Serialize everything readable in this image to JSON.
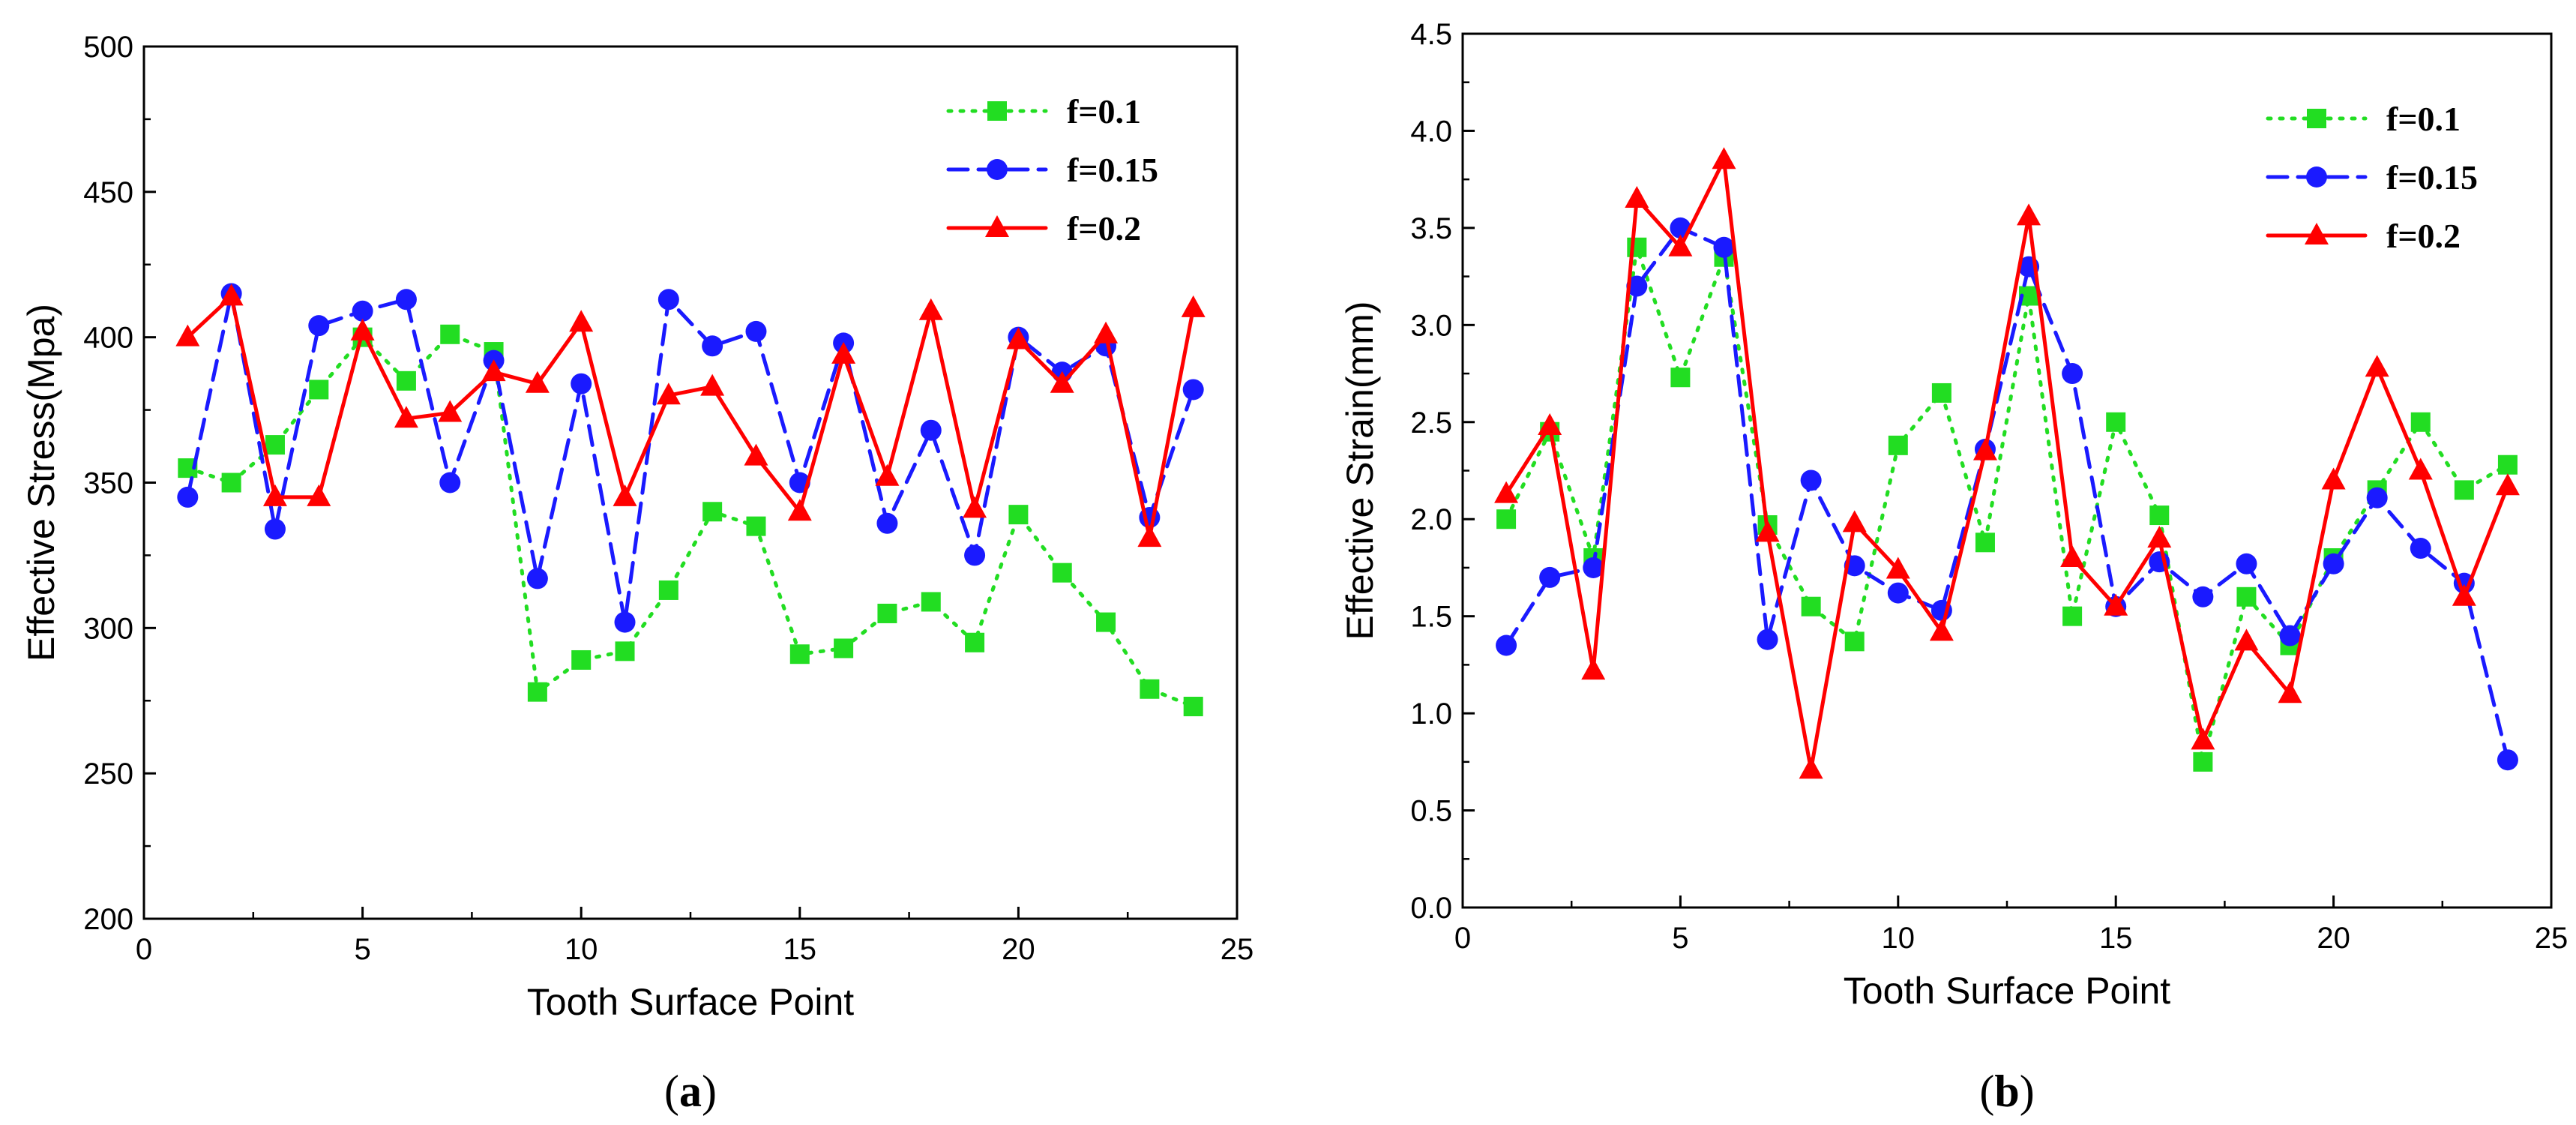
{
  "chart_data": [
    {
      "type": "line",
      "panel_label": "a",
      "title": "",
      "xlabel": "Tooth Surface Point",
      "ylabel": "Effective Stress(Mpa)",
      "xlim": [
        0,
        25
      ],
      "ylim": [
        200,
        500
      ],
      "xticks": [
        "0",
        "5",
        "10",
        "15",
        "20",
        "25"
      ],
      "yticks": [
        "200",
        "250",
        "300",
        "350",
        "400",
        "450",
        "500"
      ],
      "legend_position": "top-right",
      "x": [
        1,
        2,
        3,
        4,
        5,
        6,
        7,
        8,
        9,
        10,
        11,
        12,
        13,
        14,
        15,
        16,
        17,
        18,
        19,
        20,
        21,
        22,
        23,
        24
      ],
      "series": [
        {
          "name": "f=0.1",
          "color": "#22dd22",
          "marker": "square",
          "dash": "dotted",
          "values": [
            355,
            350,
            363,
            382,
            400,
            385,
            401,
            395,
            278,
            289,
            292,
            313,
            340,
            335,
            291,
            293,
            305,
            309,
            295,
            339,
            319,
            302,
            279,
            273
          ]
        },
        {
          "name": "f=0.15",
          "color": "#1a1aff",
          "marker": "circle",
          "dash": "dashed",
          "values": [
            345,
            415,
            334,
            404,
            409,
            413,
            350,
            392,
            317,
            384,
            302,
            413,
            397,
            402,
            350,
            398,
            336,
            368,
            325,
            400,
            388,
            397,
            338,
            382
          ]
        },
        {
          "name": "f=0.2",
          "color": "#ff0000",
          "marker": "triangle",
          "dash": "solid",
          "values": [
            400,
            414,
            345,
            345,
            402,
            372,
            374,
            388,
            384,
            405,
            345,
            380,
            383,
            359,
            340,
            394,
            352,
            409,
            341,
            399,
            384,
            401,
            331,
            410
          ]
        }
      ]
    },
    {
      "type": "line",
      "panel_label": "b",
      "title": "",
      "xlabel": "Tooth Surface Point",
      "ylabel": "Effective Strain(mm)",
      "xlim": [
        0,
        25
      ],
      "ylim": [
        0,
        4.5
      ],
      "xticks": [
        "0",
        "5",
        "10",
        "15",
        "20",
        "25"
      ],
      "yticks": [
        "0.0",
        "0.5",
        "1.0",
        "1.5",
        "2.0",
        "2.5",
        "3.0",
        "3.5",
        "4.0",
        "4.5"
      ],
      "legend_position": "top-right",
      "x": [
        1,
        2,
        3,
        4,
        5,
        6,
        7,
        8,
        9,
        10,
        11,
        12,
        13,
        14,
        15,
        16,
        17,
        18,
        19,
        20,
        21,
        22,
        23,
        24
      ],
      "series": [
        {
          "name": "f=0.1",
          "color": "#22dd22",
          "marker": "square",
          "dash": "dotted",
          "values": [
            2.0,
            2.45,
            1.8,
            3.4,
            2.73,
            3.35,
            1.97,
            1.55,
            1.37,
            2.38,
            2.65,
            1.88,
            3.15,
            1.5,
            2.5,
            2.02,
            0.75,
            1.6,
            1.35,
            1.8,
            2.15,
            2.5,
            2.15,
            2.28
          ]
        },
        {
          "name": "f=0.15",
          "color": "#1a1aff",
          "marker": "circle",
          "dash": "dashed",
          "values": [
            1.35,
            1.7,
            1.75,
            3.2,
            3.5,
            3.4,
            1.38,
            2.2,
            1.76,
            1.62,
            1.53,
            2.36,
            3.3,
            2.75,
            1.55,
            1.78,
            1.6,
            1.77,
            1.4,
            1.77,
            2.11,
            1.85,
            1.67,
            0.76
          ]
        },
        {
          "name": "f=0.2",
          "color": "#ff0000",
          "marker": "triangle",
          "dash": "solid",
          "values": [
            2.13,
            2.48,
            1.22,
            3.65,
            3.4,
            3.85,
            1.93,
            0.71,
            1.98,
            1.74,
            1.42,
            2.35,
            3.56,
            1.8,
            1.55,
            1.9,
            0.86,
            1.37,
            1.1,
            2.2,
            2.78,
            2.25,
            1.6,
            2.17
          ]
        }
      ]
    }
  ]
}
